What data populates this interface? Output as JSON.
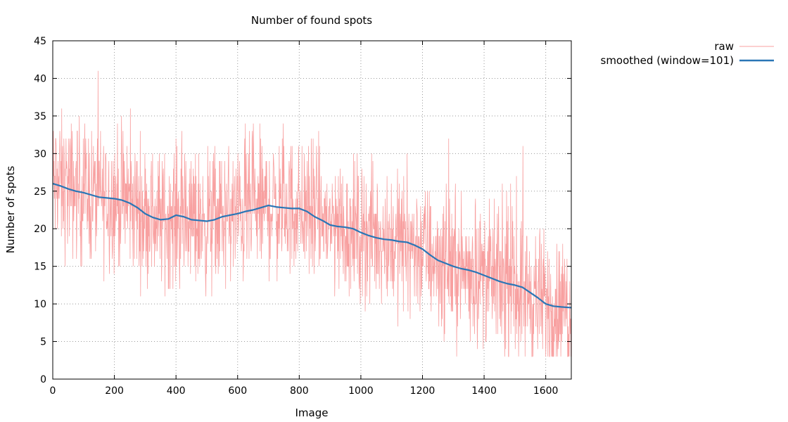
{
  "chart_data": {
    "type": "line",
    "title": "Number of found spots",
    "xlabel": "Image",
    "ylabel": "Number of spots",
    "xlim": [
      0,
      1683
    ],
    "ylim": [
      0,
      45
    ],
    "xticks": [
      0,
      200,
      400,
      600,
      800,
      1000,
      1200,
      1400,
      1600
    ],
    "yticks": [
      0,
      5,
      10,
      15,
      20,
      25,
      30,
      35,
      40,
      45
    ],
    "grid": true,
    "legend_position": "top-right-outside",
    "series": [
      {
        "name": "raw",
        "color": "#f8a0a0",
        "style": "thin-noisy",
        "approx_range": [
          3,
          41
        ],
        "x": [
          0,
          50,
          100,
          150,
          200,
          250,
          300,
          350,
          400,
          450,
          500,
          550,
          600,
          650,
          700,
          750,
          800,
          850,
          900,
          950,
          1000,
          1050,
          1100,
          1150,
          1200,
          1250,
          1300,
          1350,
          1400,
          1450,
          1500,
          1550,
          1600,
          1650,
          1683
        ],
        "values": [
          26,
          25.5,
          25,
          24.3,
          24,
          23.5,
          22,
          21.2,
          21.8,
          21.2,
          21,
          21.5,
          22,
          22.5,
          23,
          22.8,
          22.7,
          21.8,
          20.5,
          20.2,
          19.5,
          19,
          18.5,
          18.2,
          17.3,
          15.8,
          15,
          14.5,
          13.8,
          13,
          12.5,
          11.5,
          9.8,
          9.6,
          9.5
        ]
      },
      {
        "name": "smoothed (window=101)",
        "color": "#2a76b6",
        "style": "thick",
        "x": [
          0,
          25,
          50,
          75,
          100,
          125,
          150,
          175,
          200,
          225,
          250,
          275,
          300,
          325,
          350,
          375,
          400,
          425,
          450,
          475,
          500,
          525,
          550,
          575,
          600,
          625,
          650,
          675,
          700,
          725,
          750,
          775,
          800,
          825,
          850,
          875,
          900,
          925,
          950,
          975,
          1000,
          1025,
          1050,
          1075,
          1100,
          1125,
          1150,
          1175,
          1200,
          1225,
          1250,
          1275,
          1300,
          1325,
          1350,
          1375,
          1400,
          1425,
          1450,
          1475,
          1500,
          1525,
          1550,
          1575,
          1600,
          1625,
          1650,
          1683
        ],
        "values": [
          26,
          25.7,
          25.3,
          25,
          24.8,
          24.5,
          24.2,
          24.1,
          24,
          23.8,
          23.4,
          22.8,
          22,
          21.5,
          21.2,
          21.3,
          21.8,
          21.6,
          21.2,
          21.1,
          21,
          21.2,
          21.6,
          21.8,
          22,
          22.3,
          22.5,
          22.8,
          23.1,
          22.9,
          22.8,
          22.7,
          22.7,
          22.3,
          21.6,
          21.1,
          20.5,
          20.3,
          20.2,
          20,
          19.5,
          19.1,
          18.8,
          18.6,
          18.5,
          18.3,
          18.2,
          17.8,
          17.3,
          16.5,
          15.8,
          15.4,
          15,
          14.7,
          14.5,
          14.2,
          13.8,
          13.4,
          13,
          12.7,
          12.5,
          12.2,
          11.5,
          10.8,
          10,
          9.7,
          9.6,
          9.5
        ]
      }
    ]
  }
}
